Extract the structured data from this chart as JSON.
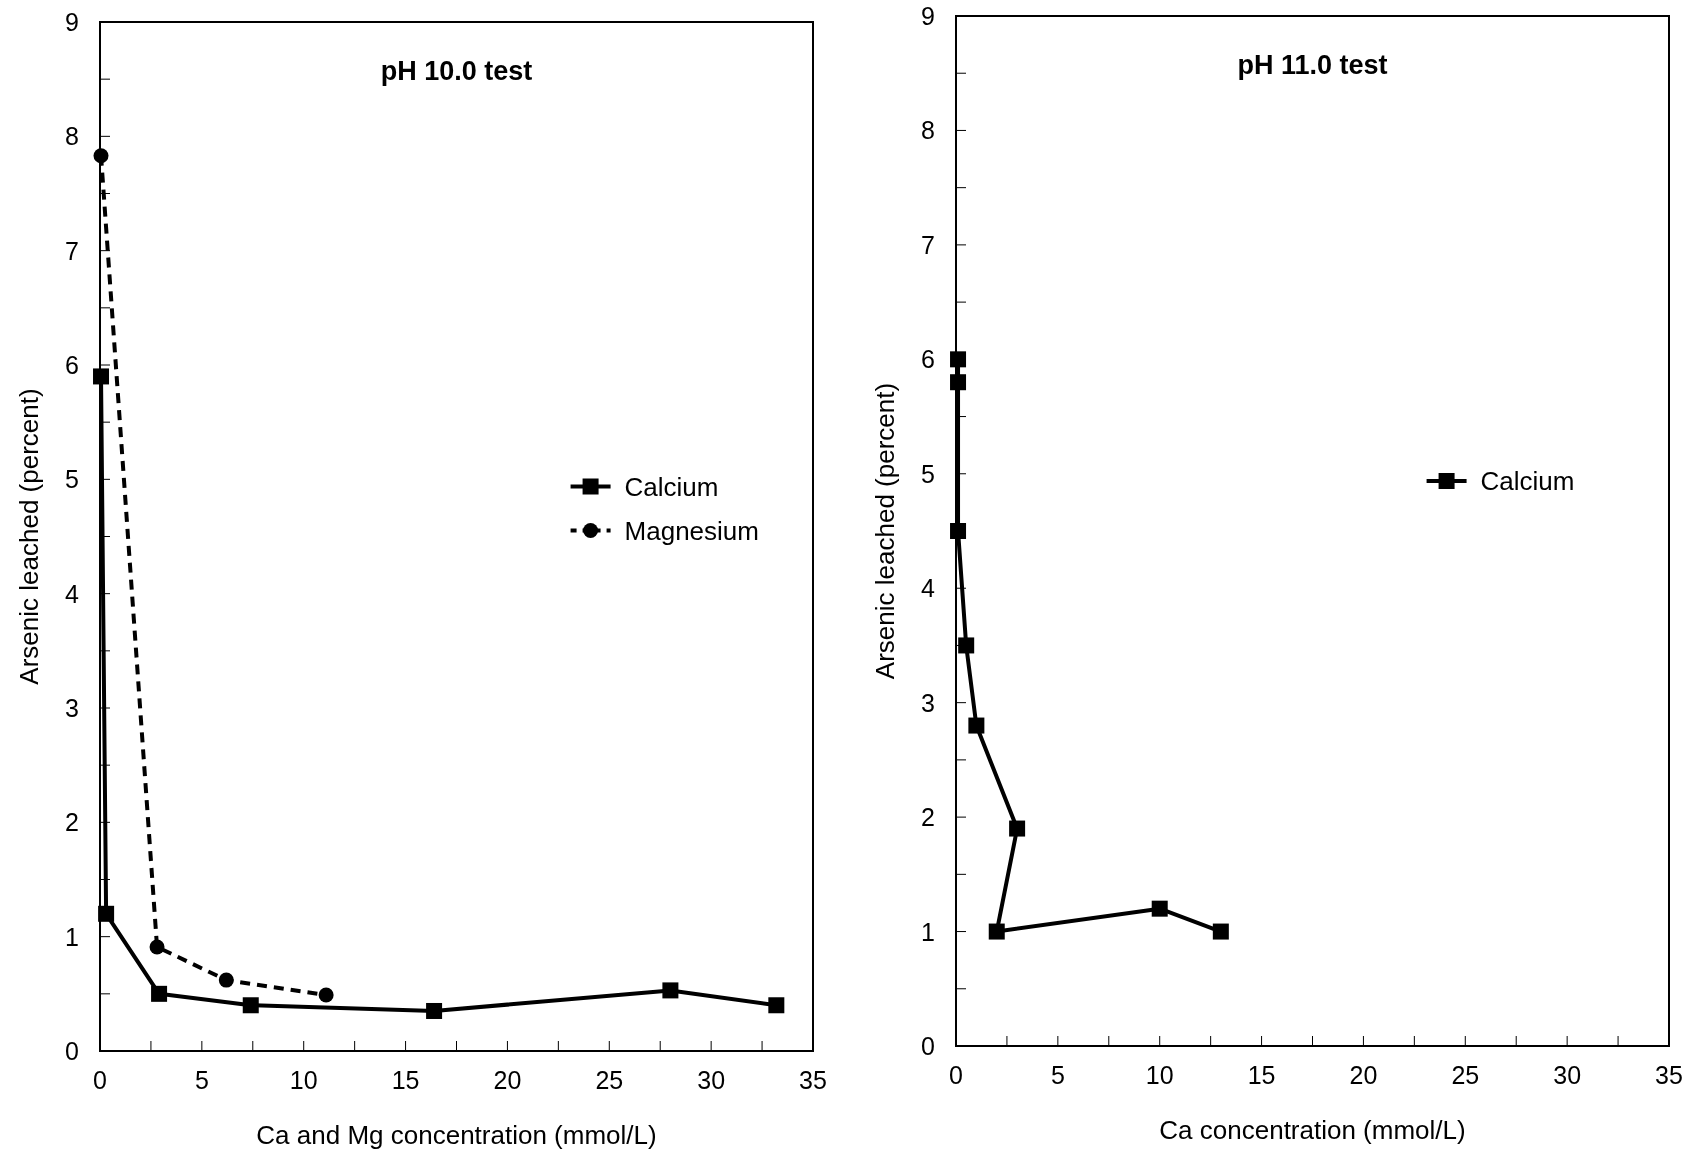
{
  "chart_data": [
    {
      "type": "line",
      "title": "pH 10.0 test",
      "xlabel": "Ca and Mg concentration (mmol/L)",
      "ylabel": "Arsenic leached (percent)",
      "xlim": [
        0,
        35
      ],
      "ylim": [
        0,
        9
      ],
      "xticks": [
        0,
        {
          "value": 2.5,
          "label": null
        },
        5,
        {
          "value": 7.5,
          "label": null
        },
        10,
        {
          "value": 12.5,
          "label": null
        },
        15,
        {
          "value": 17.5,
          "label": null
        },
        20,
        {
          "value": 22.5,
          "label": null
        },
        25,
        {
          "value": 27.5,
          "label": null
        },
        30,
        {
          "value": 32.5,
          "label": null
        },
        35
      ],
      "yticks": [
        0,
        {
          "value": 0.5,
          "label": null
        },
        1,
        {
          "value": 1.5,
          "label": null
        },
        2,
        {
          "value": 2.5,
          "label": null
        },
        3,
        {
          "value": 3.5,
          "label": null
        },
        4,
        {
          "value": 4.5,
          "label": null
        },
        5,
        {
          "value": 5.5,
          "label": null
        },
        6,
        {
          "value": 6.5,
          "label": null
        },
        7,
        {
          "value": 7.5,
          "label": null
        },
        8,
        {
          "value": 8.5,
          "label": null
        },
        9
      ],
      "legend": "right",
      "grid": false,
      "series": [
        {
          "name": "Calcium",
          "color": "#000000",
          "marker": "square",
          "line_style": "solid",
          "x": [
            0.05,
            0.3,
            2.9,
            7.4,
            16.4,
            28,
            33.2
          ],
          "values": [
            5.9,
            1.2,
            0.5,
            0.4,
            0.35,
            0.53,
            0.4
          ]
        },
        {
          "name": "Magnesium",
          "color": "#000000",
          "marker": "circle",
          "line_style": "dashed",
          "x": [
            0.05,
            2.8,
            6.2,
            11.1
          ],
          "values": [
            7.83,
            0.91,
            0.62,
            0.49
          ]
        }
      ]
    },
    {
      "type": "line",
      "title": "pH 11.0 test",
      "xlabel": "Ca concentration (mmol/L)",
      "ylabel": "Arsenic leached (percent)",
      "xlim": [
        0,
        35
      ],
      "ylim": [
        0,
        9
      ],
      "xticks": [
        0,
        {
          "value": 2.5,
          "label": null
        },
        5,
        {
          "value": 7.5,
          "label": null
        },
        10,
        {
          "value": 12.5,
          "label": null
        },
        15,
        {
          "value": 17.5,
          "label": null
        },
        20,
        {
          "value": 22.5,
          "label": null
        },
        25,
        {
          "value": 27.5,
          "label": null
        },
        30,
        {
          "value": 32.5,
          "label": null
        },
        35
      ],
      "yticks": [
        0,
        {
          "value": 0.5,
          "label": null
        },
        1,
        {
          "value": 1.5,
          "label": null
        },
        2,
        {
          "value": 2.5,
          "label": null
        },
        3,
        {
          "value": 3.5,
          "label": null
        },
        4,
        {
          "value": 4.5,
          "label": null
        },
        5,
        {
          "value": 5.5,
          "label": null
        },
        6,
        {
          "value": 6.5,
          "label": null
        },
        7,
        {
          "value": 7.5,
          "label": null
        },
        8,
        {
          "value": 8.5,
          "label": null
        },
        9
      ],
      "legend": "right",
      "grid": false,
      "series": [
        {
          "name": "Calcium",
          "color": "#000000",
          "marker": "square",
          "line_style": "solid",
          "x": [
            0.1,
            0.1,
            0.1,
            0.5,
            1.0,
            3.0,
            2.0,
            10.0,
            13.0
          ],
          "values": [
            6.0,
            5.8,
            4.5,
            3.5,
            2.8,
            1.9,
            1.0,
            1.2,
            1.0
          ]
        }
      ]
    }
  ]
}
